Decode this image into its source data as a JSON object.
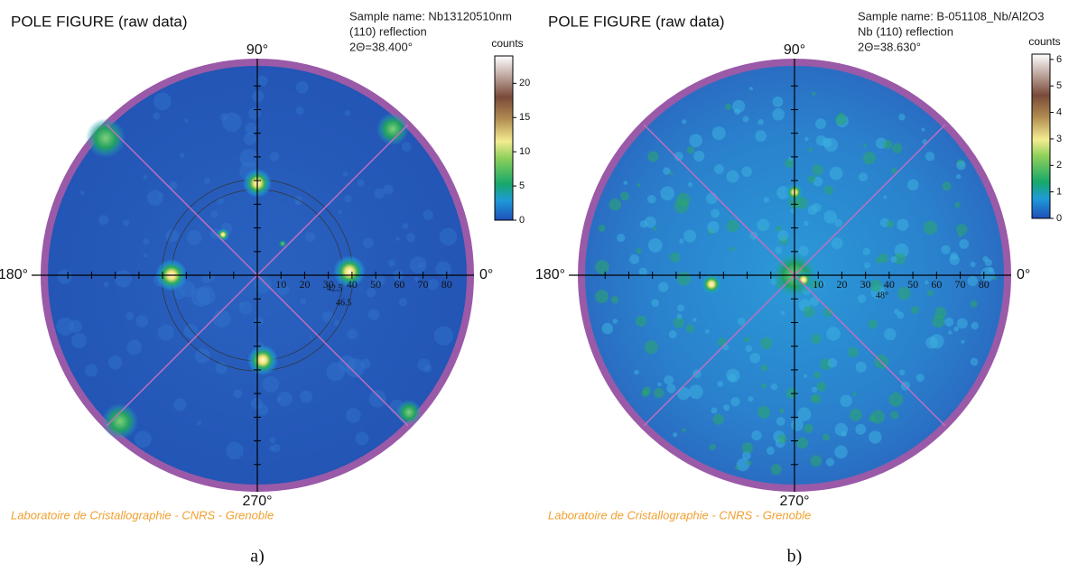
{
  "panels": [
    {
      "title": "POLE FIGURE (raw data)",
      "sample_lines": [
        "Sample name: Nb13120510nm",
        "(110) reflection",
        "2Θ=38.400°"
      ],
      "colorbar_label": "counts",
      "colorbar_lim": [
        0,
        24
      ],
      "colorbar_ticks": [
        0,
        5,
        10,
        15,
        20
      ],
      "angle_labels": {
        "top": "90°",
        "left": "180°",
        "right": "0°",
        "bottom": "270°"
      },
      "radial_lim": 90,
      "radial_ticks": [
        10,
        20,
        30,
        40,
        50,
        60,
        70,
        80
      ],
      "annotations": [
        "42.5",
        "46.5"
      ],
      "footer": "Laboratoire de Cristallographie - CNRS - Grenoble",
      "caption": "a)"
    },
    {
      "title": "POLE FIGURE (raw data)",
      "sample_lines": [
        "Sample name: B-051108_Nb/Al2O3",
        "Nb (110) reflection",
        "2Θ=38.630°"
      ],
      "colorbar_label": "counts",
      "colorbar_lim": [
        0,
        6.2
      ],
      "colorbar_ticks": [
        0,
        1,
        2,
        3,
        4,
        5,
        6
      ],
      "angle_labels": {
        "top": "90°",
        "left": "180°",
        "right": "0°",
        "bottom": "270°"
      },
      "radial_lim": 90,
      "radial_ticks": [
        10,
        20,
        30,
        40,
        50,
        60,
        70,
        80
      ],
      "annotations": [
        "48°"
      ],
      "footer": "Laboratoire de Cristallographie - CNRS - Grenoble",
      "caption": "b)"
    }
  ]
}
